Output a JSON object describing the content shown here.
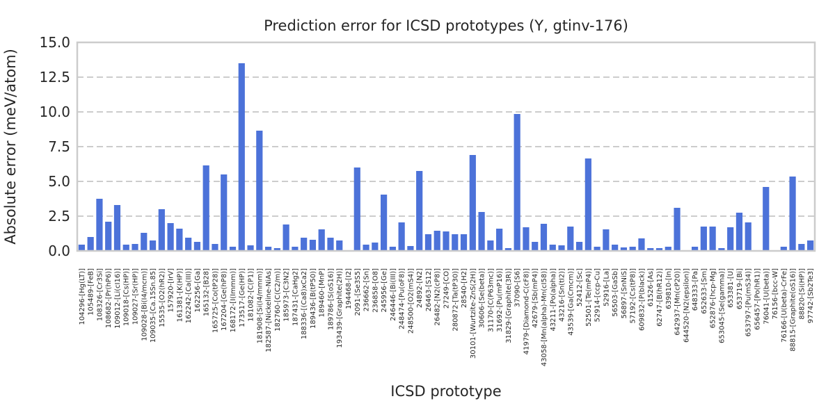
{
  "chart_data": {
    "type": "bar",
    "title": "Prediction error for ICSD prototypes (Y, gtinv-176)",
    "xlabel": "ICSD prototype",
    "ylabel": "Absolute error (meV/atom)",
    "ylim": [
      0,
      15
    ],
    "yticks": [
      "0.0",
      "2.5",
      "5.0",
      "7.5",
      "10.0",
      "12.5",
      "15.0"
    ],
    "grid": true,
    "bar_color": "#4c72d9",
    "categories": [
      "104296-[Hg(LT)]",
      "105489-[FeB]",
      "108326-[Cr3Si]",
      "108682-[Pr(hP6)]",
      "109012-[Li(cI16)]",
      "109018-[Cs(HP)]",
      "109027-[Sr(HP)]",
      "109028-[Bi(I4/mcm)]",
      "109035-[Ca.15Sn.85]",
      "15535-[O2(hR2)]",
      "157920-[IrV]",
      "161381-[K(HP)]",
      "162242-[Ca(III)]",
      "162256-[Ga]",
      "165132-[B28]",
      "165725-[Co(tP28)]",
      "167204-[Ge(hP8)]",
      "168172-[I(Immm)]",
      "173517-[Ge(HP)]",
      "181082-[C(P1)]",
      "181908-[Si(I4/mmm)]",
      "182587-[Nickeline-NiAs]",
      "182760-[C(C2/m)]",
      "185973-[C3N2]",
      "187431-[CaHg2]",
      "188336-[(Ca8)xCa2]",
      "189436-[B(tP50)]",
      "189460-[MnP]",
      "189786-[S(oS16)]",
      "193439-[Graphite(2H)]",
      "194468-[I2]",
      "2091-[Se3S5]",
      "236662-[Sn]",
      "236858-[O8]",
      "245956-[Ge]",
      "246446-[Bi(III)]",
      "248474-[Pu(oF8)]",
      "248500-[O2(mS4)]",
      "24892-[N2]",
      "26463-[S12]",
      "26482-[N2(cP8)]",
      "27249-[CO]",
      "280872-[Ta(tP30)]",
      "28540-[H2]",
      "30101-[Wurtzite-ZnS(2H)]",
      "30606-[Se(beta)]",
      "31170-[C(P63mc)]",
      "31692-[Pu(mP16)]",
      "31829-[Graphite(3R)]",
      "37090-[S6]",
      "41979-[Diamond-C(cF8)]",
      "42679-[Sb(mP4)]",
      "43058-[Mn(alpha)-Mn(cI58)]",
      "43211-[Po(alpha)]",
      "43216-[Sn(tI2)]",
      "43539-[Ga(Cmcm)]",
      "52412-[Sc]",
      "52501-[Te(mP4)]",
      "52914-[ccp-Cu]",
      "52916-[La]",
      "56503-[GaSb]",
      "56897-[SnNiS]",
      "57192-[Cs(tP8)]",
      "609832-[P(black)]",
      "61526-[As]",
      "62747-[B(hR12)]",
      "639810-[In]",
      "642937-[Mn(cP20)]",
      "644520-[N2(epsilon)]",
      "648333-[Pa]",
      "652633-[Sm]",
      "652876-[hcp-Mg]",
      "653045-[Se(gamma)]",
      "653381-[U]",
      "653719-[Bi]",
      "653797-[Pu(mS34)]",
      "656457-[Po(hR1)]",
      "76041-[U(beta)]",
      "76156-[bcc-W]",
      "76166-[U(beta)-CrFe]",
      "88815-[Graphite(oS16)]",
      "88820-[Si(HP)]",
      "97742-[Sb2Te3]"
    ],
    "values": [
      0.45,
      1.0,
      3.75,
      2.1,
      3.3,
      0.45,
      0.5,
      1.3,
      0.75,
      3.0,
      2.0,
      1.6,
      0.95,
      0.65,
      6.15,
      0.5,
      5.5,
      0.3,
      13.5,
      0.4,
      8.65,
      0.3,
      0.2,
      1.9,
      0.3,
      0.95,
      0.8,
      1.55,
      0.95,
      0.75,
      0.0,
      6.0,
      0.45,
      0.6,
      4.05,
      0.3,
      2.05,
      0.35,
      5.75,
      1.2,
      1.45,
      1.4,
      1.2,
      1.2,
      6.9,
      2.8,
      0.75,
      1.6,
      0.2,
      9.85,
      1.7,
      0.65,
      1.95,
      0.45,
      0.4,
      1.75,
      0.65,
      6.65,
      0.3,
      1.55,
      0.45,
      0.25,
      0.3,
      0.9,
      0.2,
      0.2,
      0.3,
      3.1,
      0.0,
      0.3,
      1.75,
      1.75,
      0.2,
      1.7,
      2.75,
      2.05,
      0.0,
      4.6,
      0.0,
      0.3,
      5.35,
      0.5,
      0.75
    ]
  }
}
